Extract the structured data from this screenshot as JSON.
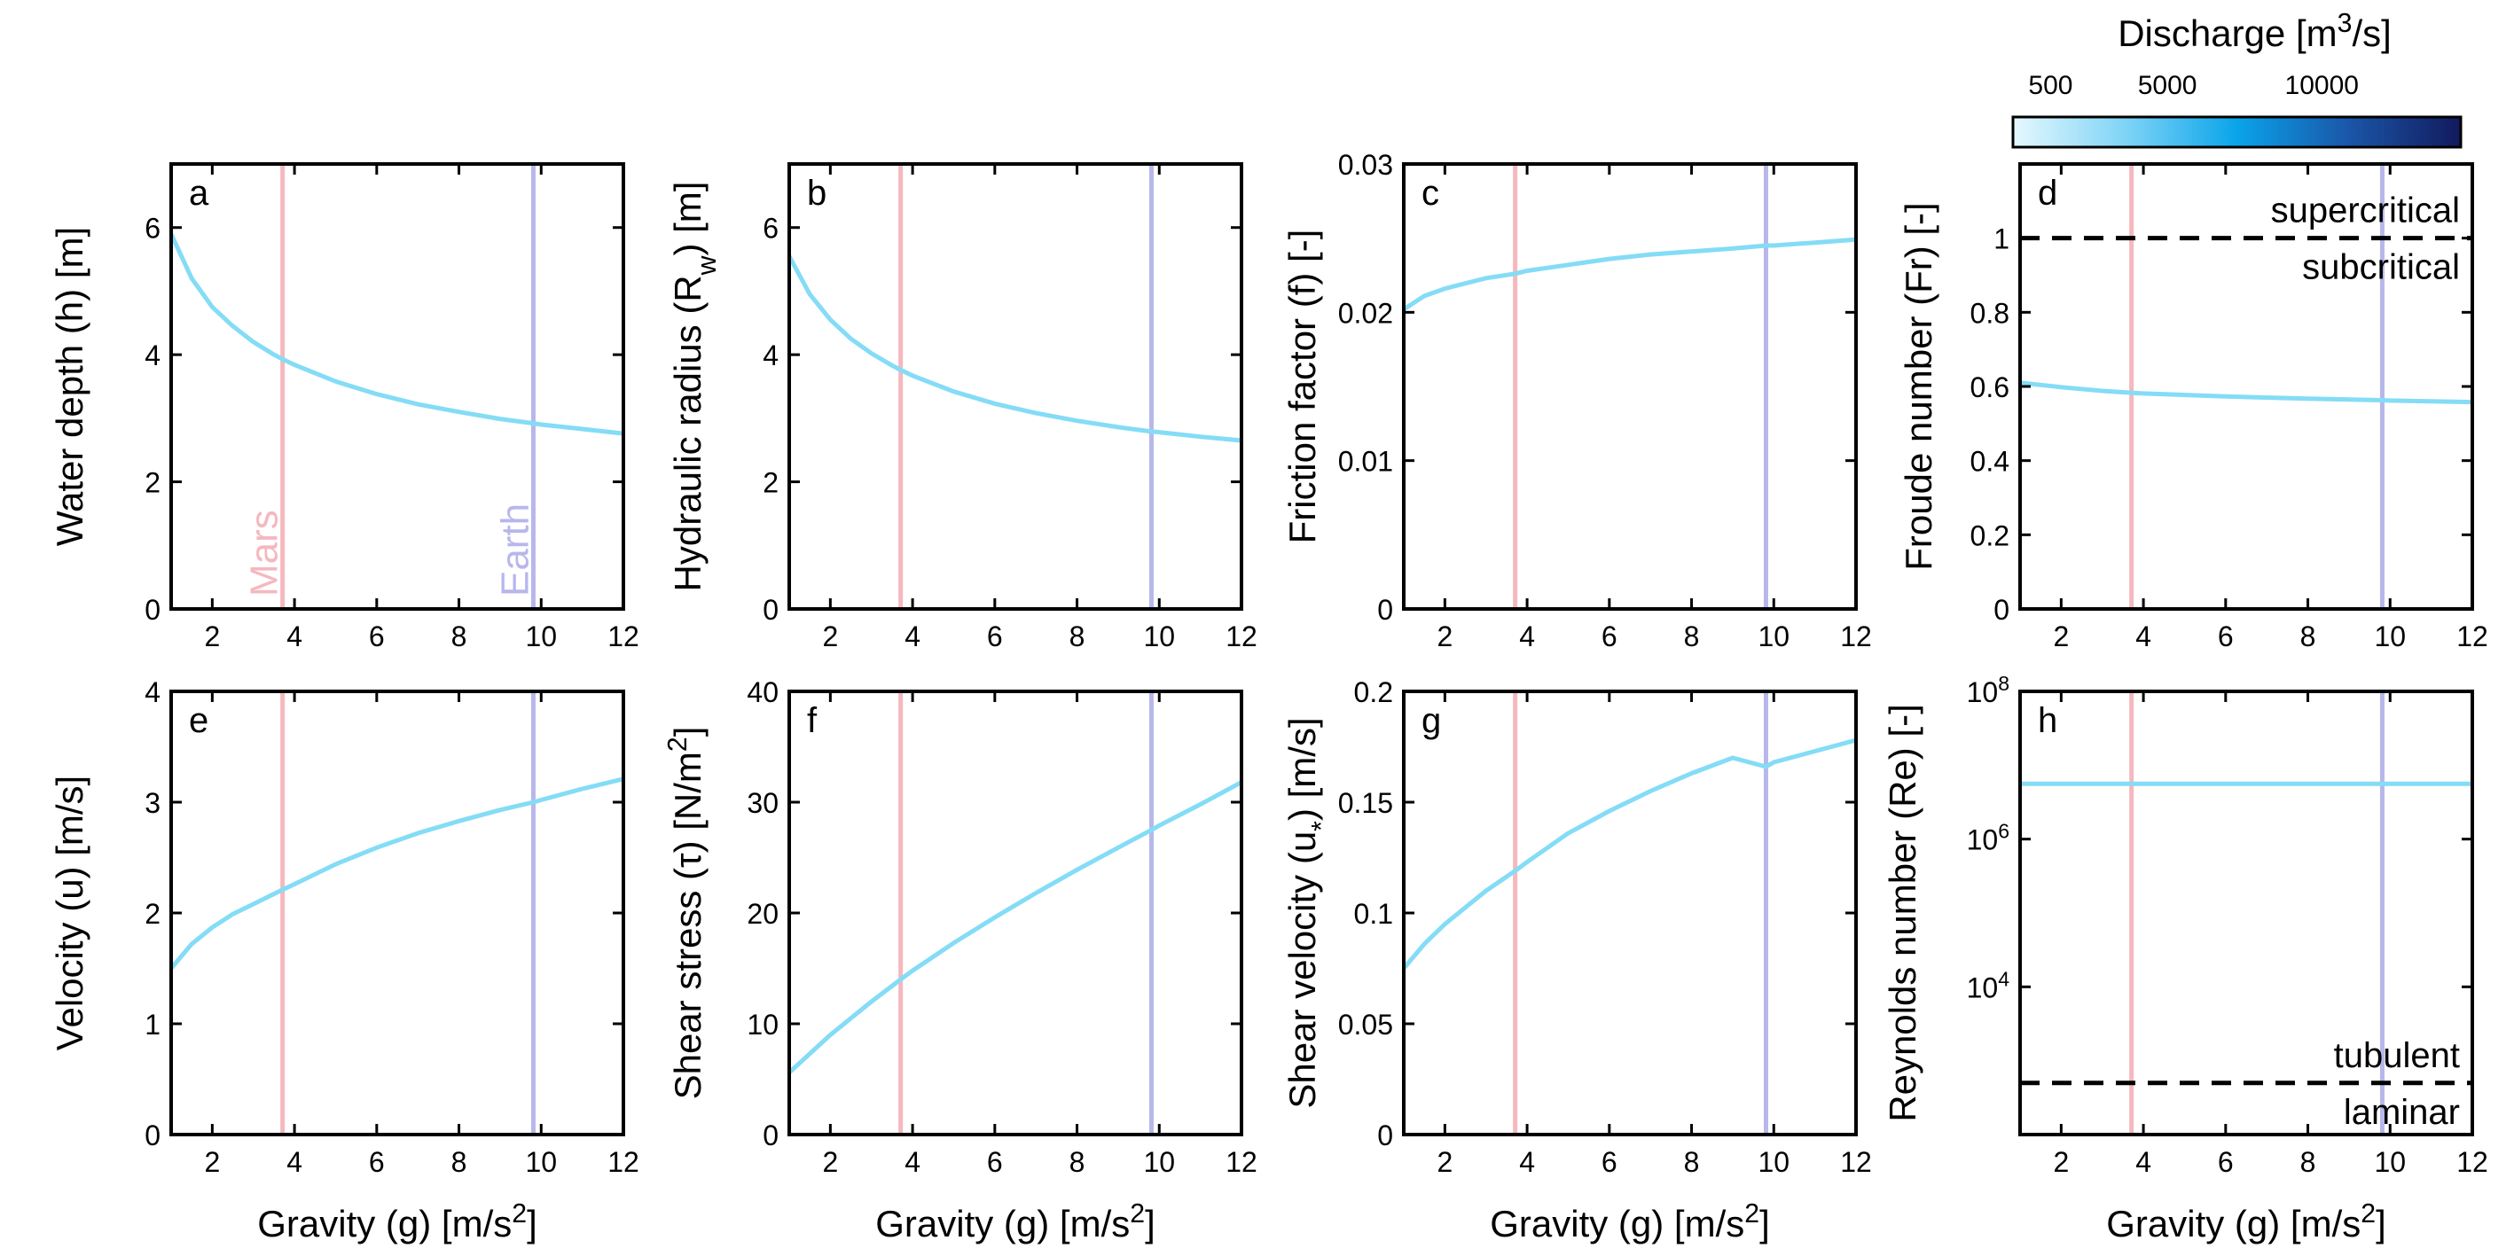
{
  "colors": {
    "curve": "#84dcf6",
    "mars": "#f4b8be",
    "earth": "#b7b7ec",
    "threshold": "#000000"
  },
  "reference_lines": {
    "mars": {
      "g": 3.71,
      "label": "Mars"
    },
    "earth": {
      "g": 9.81,
      "label": "Earth"
    }
  },
  "colorbar": {
    "title": "Discharge [m",
    "title_sup": "3",
    "title_end": "/s]",
    "ticks": [
      "500",
      "5000",
      "10000"
    ],
    "tick_values": [
      500,
      5000,
      10000
    ],
    "range": [
      0,
      14500
    ],
    "colors": [
      "#e6f8ff",
      "#7fd4f6",
      "#0aa4ea",
      "#1a56a8",
      "#121a5c"
    ]
  },
  "chart_data": [
    {
      "type": "line",
      "panel": "a",
      "ylabel": "Water depth (h) [m]",
      "xlabel": "",
      "xlim": [
        1,
        12
      ],
      "ylim": [
        0,
        7
      ],
      "yticks": [
        0,
        2,
        4,
        6
      ],
      "x": [
        1,
        1.5,
        2,
        2.5,
        3,
        3.5,
        3.71,
        4,
        5,
        6,
        7,
        8,
        9,
        9.81,
        10,
        11,
        12
      ],
      "series": [
        {
          "values": [
            5.9,
            5.2,
            4.75,
            4.45,
            4.2,
            4.0,
            3.93,
            3.84,
            3.58,
            3.38,
            3.22,
            3.1,
            2.99,
            2.92,
            2.9,
            2.83,
            2.76
          ]
        }
      ],
      "show_planet_labels": true
    },
    {
      "type": "line",
      "panel": "b",
      "ylabel": "Hydraulic radius (R",
      "ylabel_sub": "w",
      "ylabel_end": ") [m]",
      "xlabel": "",
      "xlim": [
        1,
        12
      ],
      "ylim": [
        0,
        7
      ],
      "yticks": [
        0,
        2,
        4,
        6
      ],
      "x": [
        1,
        1.5,
        2,
        2.5,
        3,
        3.5,
        3.71,
        4,
        5,
        6,
        7,
        8,
        9,
        9.81,
        10,
        11,
        12
      ],
      "series": [
        {
          "values": [
            5.55,
            4.95,
            4.55,
            4.25,
            4.02,
            3.83,
            3.76,
            3.67,
            3.42,
            3.23,
            3.08,
            2.96,
            2.86,
            2.79,
            2.78,
            2.71,
            2.65
          ]
        }
      ]
    },
    {
      "type": "line",
      "panel": "c",
      "ylabel": "Friction factor (f) [-]",
      "xlabel": "",
      "xlim": [
        1,
        12
      ],
      "ylim": [
        0,
        0.03
      ],
      "yticks": [
        0,
        0.01,
        0.02,
        0.03
      ],
      "ytick_labels": [
        "0",
        "0.01",
        "0.02",
        "0.03"
      ],
      "x": [
        1,
        1.5,
        2,
        3,
        3.71,
        4,
        5,
        6,
        7,
        8,
        9,
        9.81,
        10,
        11,
        12
      ],
      "series": [
        {
          "values": [
            0.0202,
            0.0211,
            0.0216,
            0.0223,
            0.0226,
            0.0228,
            0.0232,
            0.0236,
            0.0239,
            0.0241,
            0.0243,
            0.0245,
            0.0245,
            0.0247,
            0.0249
          ]
        }
      ]
    },
    {
      "type": "line",
      "panel": "d",
      "ylabel": "Froude number (Fr) [-]",
      "xlabel": "",
      "xlim": [
        1,
        12
      ],
      "ylim": [
        0,
        1.2
      ],
      "yticks": [
        0,
        0.2,
        0.4,
        0.6,
        0.8,
        1
      ],
      "ytick_labels": [
        "0",
        "0.2",
        "0.4",
        "0.6",
        "0.8",
        "1"
      ],
      "x": [
        1,
        2,
        3,
        3.71,
        4,
        6,
        8,
        9.81,
        10,
        12
      ],
      "series": [
        {
          "values": [
            0.61,
            0.598,
            0.588,
            0.583,
            0.581,
            0.573,
            0.567,
            0.563,
            0.562,
            0.558
          ]
        }
      ],
      "threshold": {
        "value": 1,
        "above": "supercritical",
        "below": "subcritical"
      }
    },
    {
      "type": "line",
      "panel": "e",
      "ylabel": "Velocity (u) [m/s]",
      "xlabel": "Gravity (g) [m/s",
      "xlabel_sup": "2",
      "xlabel_end": "]",
      "xlim": [
        1,
        12
      ],
      "ylim": [
        0,
        4
      ],
      "yticks": [
        0,
        1,
        2,
        3,
        4
      ],
      "x": [
        1,
        1.5,
        2,
        2.5,
        3,
        3.71,
        4,
        5,
        6,
        7,
        8,
        9,
        9.81,
        10,
        11,
        12
      ],
      "series": [
        {
          "values": [
            1.5,
            1.72,
            1.87,
            1.99,
            2.08,
            2.21,
            2.26,
            2.44,
            2.59,
            2.72,
            2.83,
            2.93,
            3.0,
            3.02,
            3.12,
            3.21
          ]
        }
      ]
    },
    {
      "type": "line",
      "panel": "f",
      "ylabel": "Shear stress (τ) [N/m",
      "ylabel_sup": "2",
      "ylabel_end": "]",
      "xlabel": "Gravity (g) [m/s",
      "xlabel_sup": "2",
      "xlabel_end": "]",
      "xlim": [
        1,
        12
      ],
      "ylim": [
        0,
        40
      ],
      "yticks": [
        0,
        10,
        20,
        30,
        40
      ],
      "x": [
        1,
        2,
        3,
        3.71,
        4,
        5,
        6,
        7,
        8,
        9,
        9.81,
        10,
        11,
        12
      ],
      "series": [
        {
          "values": [
            5.6,
            9.0,
            12.0,
            14.0,
            14.8,
            17.3,
            19.6,
            21.8,
            23.9,
            25.9,
            27.5,
            27.9,
            29.8,
            31.8
          ]
        }
      ]
    },
    {
      "type": "line",
      "panel": "g",
      "ylabel": "Shear velocity (u",
      "ylabel_sub": "*",
      "ylabel_end": ") [m/s]",
      "xlabel": "Gravity (g) [m/s",
      "xlabel_sup": "2",
      "xlabel_end": "]",
      "xlim": [
        1,
        12
      ],
      "ylim": [
        0,
        0.2
      ],
      "yticks": [
        0,
        0.05,
        0.1,
        0.15,
        0.2
      ],
      "ytick_labels": [
        "0",
        "0.05",
        "0.1",
        "0.15",
        "0.2"
      ],
      "x": [
        1,
        1.5,
        2,
        3,
        3.71,
        4,
        5,
        6,
        7,
        8,
        9,
        9.81,
        10,
        11,
        12
      ],
      "series": [
        {
          "values": [
            0.075,
            0.086,
            0.095,
            0.11,
            0.119,
            0.123,
            0.136,
            0.146,
            0.155,
            0.163,
            0.17,
            0.166,
            0.168,
            0.173,
            0.178
          ]
        }
      ]
    },
    {
      "type": "line",
      "panel": "h",
      "yscale": "log",
      "ylabel": "Reynolds number (Re) [-]",
      "xlabel": "Gravity (g) [m/s",
      "xlabel_sup": "2",
      "xlabel_end": "]",
      "xlim": [
        1,
        12
      ],
      "ylim": [
        100,
        100000000
      ],
      "ytick_exps": [
        4,
        6,
        8
      ],
      "ytick_base": "10",
      "x": [
        1,
        12
      ],
      "series": [
        {
          "values": [
            5600000,
            5600000
          ]
        }
      ],
      "threshold": {
        "value": 500,
        "above": "tubulent",
        "below": "laminar"
      }
    }
  ]
}
